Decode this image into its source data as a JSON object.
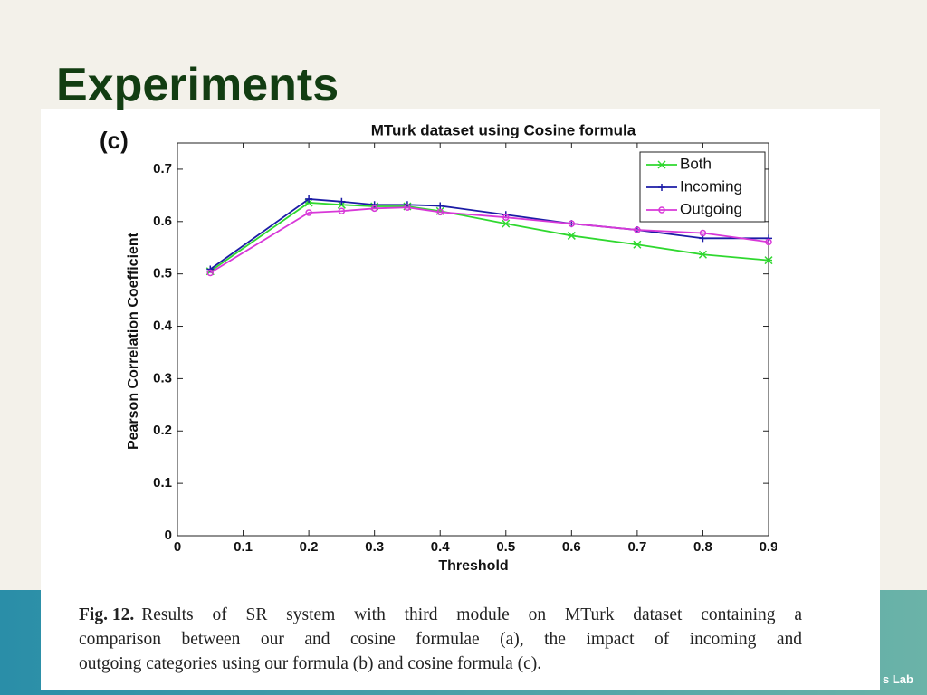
{
  "slide_title": "Experiments",
  "panel_label": "(c)",
  "chart_data": {
    "type": "line",
    "title": "MTurk dataset using Cosine formula",
    "x_label": "Threshold",
    "y_label": "Pearson Correlation Coefficient",
    "x": [
      0.05,
      0.2,
      0.25,
      0.3,
      0.35,
      0.4,
      0.5,
      0.6,
      0.7,
      0.8,
      0.9
    ],
    "series": [
      {
        "name": "Both",
        "color": "#2fd82f",
        "marker": "x",
        "values": [
          0.505,
          0.636,
          0.632,
          0.629,
          0.629,
          0.62,
          0.596,
          0.573,
          0.556,
          0.537,
          0.526
        ]
      },
      {
        "name": "Incoming",
        "color": "#1c1ca6",
        "marker": "+",
        "values": [
          0.509,
          0.643,
          0.638,
          0.632,
          0.632,
          0.63,
          0.613,
          0.596,
          0.584,
          0.568,
          0.568
        ]
      },
      {
        "name": "Outgoing",
        "color": "#d838d8",
        "marker": "o",
        "values": [
          0.502,
          0.617,
          0.62,
          0.625,
          0.627,
          0.618,
          0.608,
          0.596,
          0.584,
          0.578,
          0.561
        ]
      }
    ],
    "xlim": [
      0,
      0.9
    ],
    "ylim": [
      0,
      0.75
    ],
    "xticks": [
      0,
      0.1,
      0.2,
      0.3,
      0.4,
      0.5,
      0.6,
      0.7,
      0.8,
      0.9
    ],
    "yticks": [
      0,
      0.1,
      0.2,
      0.3,
      0.4,
      0.5,
      0.6,
      0.7
    ],
    "legend": "upper-right",
    "grid": false
  },
  "caption": {
    "label": "Fig. 12.",
    "lines": [
      "Results of SR system with third module on MTurk dataset containing a",
      "comparison between our and cosine formulae (a), the impact of incoming and",
      "outgoing categories using our formula (b) and cosine formula (c)."
    ]
  },
  "footer": "s Lab"
}
